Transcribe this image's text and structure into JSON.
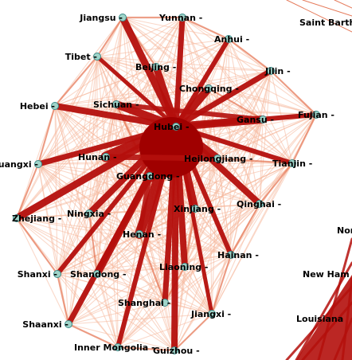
{
  "colors": {
    "background": "#ffffff",
    "edge_light": "#f6b89c",
    "edge_mid": "#e0613c",
    "edge_dark": "#b40f0c",
    "edge_darkest": "#a00000",
    "node_fill": "#9fd4c9",
    "node_stroke": "#3a8a88",
    "label": "#000000"
  },
  "hub": "Hubei",
  "nodes": [
    {
      "id": "jiangsu",
      "label": "Jiangsu -"
    },
    {
      "id": "yunnan",
      "label": "Yunnan -"
    },
    {
      "id": "anhui",
      "label": "Anhui -"
    },
    {
      "id": "tibet",
      "label": "Tibet -"
    },
    {
      "id": "beijing",
      "label": "Beijing -"
    },
    {
      "id": "jilin",
      "label": "Jilin -"
    },
    {
      "id": "chongqing",
      "label": "Chongqing -"
    },
    {
      "id": "hebei",
      "label": "Hebei -"
    },
    {
      "id": "sichuan",
      "label": "Sichuan -"
    },
    {
      "id": "fujian",
      "label": "Fujian -"
    },
    {
      "id": "gansu",
      "label": "Gansu -"
    },
    {
      "id": "hubei",
      "label": "Hubei -"
    },
    {
      "id": "guangxi",
      "label": "Guangxi -"
    },
    {
      "id": "hunan",
      "label": "Hunan -"
    },
    {
      "id": "heilongjiang",
      "label": "Heilongjiang -"
    },
    {
      "id": "tianjin",
      "label": "Tianjin -"
    },
    {
      "id": "guangdong",
      "label": "Guangdong -"
    },
    {
      "id": "qinghai",
      "label": "Qinghai -"
    },
    {
      "id": "zhejiang",
      "label": "Zhejiang -"
    },
    {
      "id": "ningxia",
      "label": "Ningxia -"
    },
    {
      "id": "xinjiang",
      "label": "Xinjiang -"
    },
    {
      "id": "henan",
      "label": "Henan -"
    },
    {
      "id": "hainan",
      "label": "Hainan -"
    },
    {
      "id": "shanxi",
      "label": "Shanxi -"
    },
    {
      "id": "shandong",
      "label": "Shandong -"
    },
    {
      "id": "liaoning",
      "label": "Liaoning -"
    },
    {
      "id": "shanghai",
      "label": "Shanghai -"
    },
    {
      "id": "jiangxi",
      "label": "Jiangxi -"
    },
    {
      "id": "shaanxi",
      "label": "Shaanxi -"
    },
    {
      "id": "inner_mongolia",
      "label": "Inner Mongolia -"
    },
    {
      "id": "guizhou",
      "label": "Guizhou -"
    }
  ],
  "right_cluster_labels": [
    {
      "id": "saint_barth",
      "label": "Saint Barth"
    },
    {
      "id": "nor",
      "label": "Nor"
    },
    {
      "id": "new_ham",
      "label": "New Ham"
    },
    {
      "id": "louisiana",
      "label": "Louisiana"
    }
  ]
}
